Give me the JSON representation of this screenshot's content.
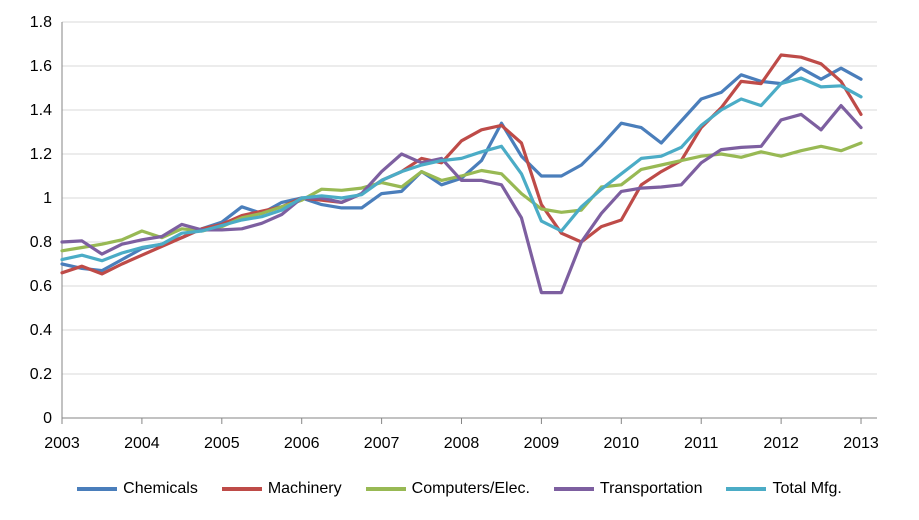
{
  "chart_data": {
    "type": "line",
    "title": "",
    "xlabel": "",
    "ylabel": "",
    "xlim": [
      2003,
      2013.2
    ],
    "ylim": [
      0,
      1.8
    ],
    "grid": true,
    "legend_position": "bottom",
    "x_ticks": [
      "2003",
      "2004",
      "2005",
      "2006",
      "2007",
      "2008",
      "2009",
      "2010",
      "2011",
      "2012",
      "2013"
    ],
    "y_ticks": [
      "0",
      "0.2",
      "0.4",
      "0.6",
      "0.8",
      "1",
      "1.2",
      "1.4",
      "1.6",
      "1.8"
    ],
    "x": [
      2003.0,
      2003.25,
      2003.5,
      2003.75,
      2004.0,
      2004.25,
      2004.5,
      2004.75,
      2005.0,
      2005.25,
      2005.5,
      2005.75,
      2006.0,
      2006.25,
      2006.5,
      2006.75,
      2007.0,
      2007.25,
      2007.5,
      2007.75,
      2008.0,
      2008.25,
      2008.5,
      2008.75,
      2009.0,
      2009.25,
      2009.5,
      2009.75,
      2010.0,
      2010.25,
      2010.5,
      2010.75,
      2011.0,
      2011.25,
      2011.5,
      2011.75,
      2012.0,
      2012.25,
      2012.5,
      2012.75,
      2013.0
    ],
    "series": [
      {
        "name": "Chemicals",
        "color": "#4a7ebb",
        "values": [
          0.7,
          0.68,
          0.67,
          0.72,
          0.77,
          0.79,
          0.82,
          0.86,
          0.89,
          0.96,
          0.93,
          0.98,
          1.0,
          0.97,
          0.955,
          0.955,
          1.02,
          1.03,
          1.12,
          1.06,
          1.09,
          1.17,
          1.34,
          1.19,
          1.1,
          1.1,
          1.15,
          1.24,
          1.34,
          1.32,
          1.25,
          1.35,
          1.45,
          1.48,
          1.56,
          1.53,
          1.52,
          1.59,
          1.54,
          1.59,
          1.54
        ]
      },
      {
        "name": "Machinery",
        "color": "#be4b48",
        "values": [
          0.66,
          0.69,
          0.655,
          0.7,
          0.74,
          0.78,
          0.82,
          0.86,
          0.88,
          0.92,
          0.94,
          0.96,
          1.0,
          0.99,
          0.98,
          1.02,
          1.08,
          1.12,
          1.18,
          1.16,
          1.26,
          1.31,
          1.33,
          1.25,
          0.97,
          0.84,
          0.8,
          0.87,
          0.9,
          1.06,
          1.12,
          1.17,
          1.32,
          1.41,
          1.53,
          1.52,
          1.65,
          1.64,
          1.61,
          1.53,
          1.38
        ]
      },
      {
        "name": "Computers/Elec.",
        "color": "#98b954",
        "values": [
          0.76,
          0.775,
          0.79,
          0.81,
          0.85,
          0.82,
          0.86,
          0.85,
          0.87,
          0.91,
          0.93,
          0.96,
          0.99,
          1.04,
          1.035,
          1.045,
          1.07,
          1.05,
          1.12,
          1.08,
          1.1,
          1.125,
          1.11,
          1.02,
          0.95,
          0.935,
          0.945,
          1.05,
          1.06,
          1.13,
          1.15,
          1.17,
          1.19,
          1.2,
          1.185,
          1.21,
          1.19,
          1.215,
          1.235,
          1.215,
          1.25
        ]
      },
      {
        "name": "Transportation",
        "color": "#7d5fa0",
        "values": [
          0.8,
          0.805,
          0.745,
          0.79,
          0.81,
          0.825,
          0.88,
          0.855,
          0.855,
          0.86,
          0.885,
          0.925,
          1.0,
          1.0,
          0.98,
          1.02,
          1.12,
          1.2,
          1.16,
          1.18,
          1.08,
          1.08,
          1.06,
          0.91,
          0.57,
          0.57,
          0.8,
          0.93,
          1.03,
          1.045,
          1.05,
          1.06,
          1.16,
          1.22,
          1.23,
          1.235,
          1.355,
          1.38,
          1.31,
          1.42,
          1.32
        ]
      },
      {
        "name": "Total Mfg.",
        "color": "#4bacc6",
        "values": [
          0.72,
          0.74,
          0.715,
          0.75,
          0.775,
          0.79,
          0.84,
          0.85,
          0.875,
          0.9,
          0.915,
          0.945,
          1.0,
          1.01,
          1.0,
          1.015,
          1.08,
          1.12,
          1.15,
          1.17,
          1.18,
          1.21,
          1.235,
          1.11,
          0.895,
          0.85,
          0.96,
          1.04,
          1.11,
          1.18,
          1.19,
          1.23,
          1.33,
          1.4,
          1.45,
          1.42,
          1.52,
          1.545,
          1.505,
          1.51,
          1.46
        ]
      }
    ]
  }
}
